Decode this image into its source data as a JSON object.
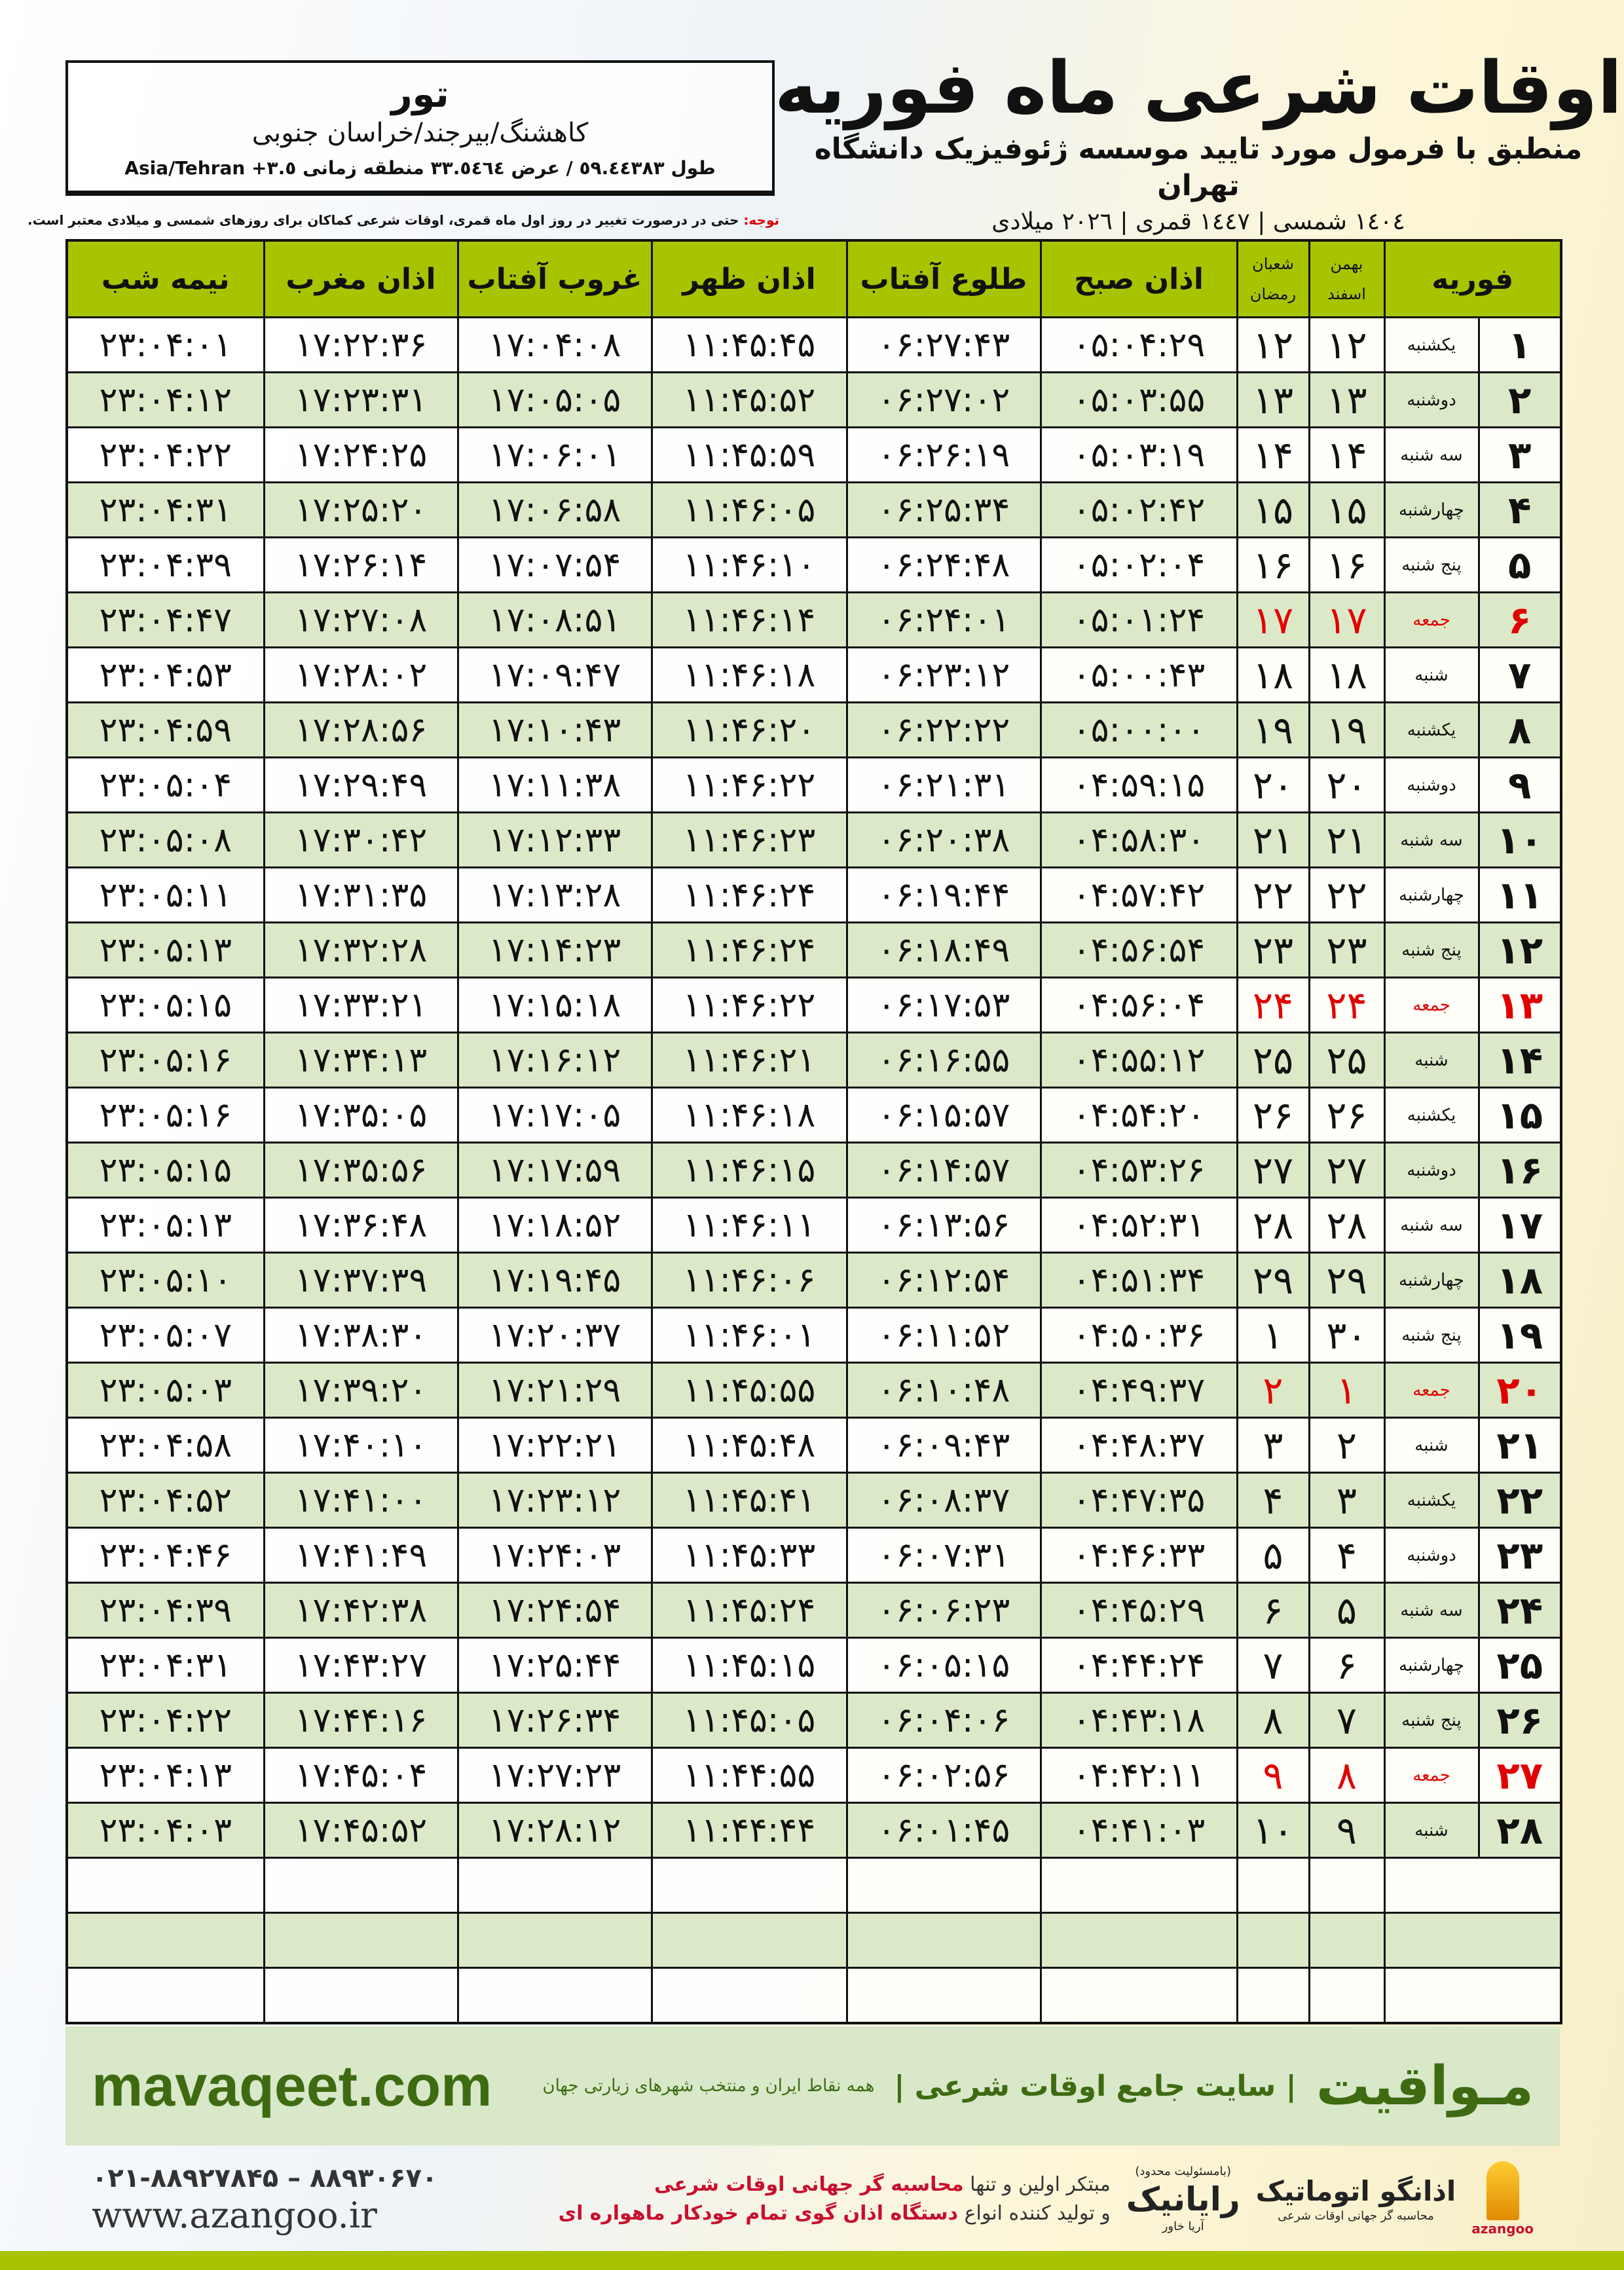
{
  "header": {
    "title": "اوقات شرعی ماه فوریه",
    "subtitle": "منطبق با فرمول مورد تایید موسسه ژئوفیزیک دانشگاه تهران",
    "years": "١٤٠٤ شمسی | ١٤٤٧ قمری | ٢٠٢٦ میلادی"
  },
  "location": {
    "city": "تور",
    "region": "کاهشنگ/بیرجند/خراسان جنوبی",
    "coords": "طول ٥٩.٤٤٣٨٣ / عرض ٣٣.٥٤٦٤ منطقه زمانی ٣.٥+ Asia/Tehran"
  },
  "note": {
    "label": "توجه:",
    "text": " حتی در درصورت تغییر در روز اول ماه قمری، اوقات شرعی کماکان برای روزهای شمسی و میلادی معتبر است."
  },
  "table": {
    "headers": {
      "month": "فوریه",
      "solar_top": "بهمن",
      "solar_bottom": "اسفند",
      "lunar_top": "شعبان",
      "lunar_bottom": "رمضان",
      "fajr": "اذان صبح",
      "sunrise": "طلوع آفتاب",
      "dhuhr": "اذان ظهر",
      "sunset": "غروب آفتاب",
      "maghrib": "اذان مغرب",
      "midnight": "نیمه شب"
    },
    "friday_color": "#e00000",
    "rows": [
      [
        "۱",
        "یکشنبه",
        "۱۲",
        "۱۲",
        "۰۵:۰۴:۲۹",
        "۰۶:۲۷:۴۳",
        "۱۱:۴۵:۴۵",
        "۱۷:۰۴:۰۸",
        "۱۷:۲۲:۳۶",
        "۲۳:۰۴:۰۱"
      ],
      [
        "۲",
        "دوشنبه",
        "۱۳",
        "۱۳",
        "۰۵:۰۳:۵۵",
        "۰۶:۲۷:۰۲",
        "۱۱:۴۵:۵۲",
        "۱۷:۰۵:۰۵",
        "۱۷:۲۳:۳۱",
        "۲۳:۰۴:۱۲"
      ],
      [
        "۳",
        "سه شنبه",
        "۱۴",
        "۱۴",
        "۰۵:۰۳:۱۹",
        "۰۶:۲۶:۱۹",
        "۱۱:۴۵:۵۹",
        "۱۷:۰۶:۰۱",
        "۱۷:۲۴:۲۵",
        "۲۳:۰۴:۲۲"
      ],
      [
        "۴",
        "چهارشنبه",
        "۱۵",
        "۱۵",
        "۰۵:۰۲:۴۲",
        "۰۶:۲۵:۳۴",
        "۱۱:۴۶:۰۵",
        "۱۷:۰۶:۵۸",
        "۱۷:۲۵:۲۰",
        "۲۳:۰۴:۳۱"
      ],
      [
        "۵",
        "پنج شنبه",
        "۱۶",
        "۱۶",
        "۰۵:۰۲:۰۴",
        "۰۶:۲۴:۴۸",
        "۱۱:۴۶:۱۰",
        "۱۷:۰۷:۵۴",
        "۱۷:۲۶:۱۴",
        "۲۳:۰۴:۳۹"
      ],
      [
        "۶",
        "جمعه",
        "۱۷",
        "۱۷",
        "۰۵:۰۱:۲۴",
        "۰۶:۲۴:۰۱",
        "۱۱:۴۶:۱۴",
        "۱۷:۰۸:۵۱",
        "۱۷:۲۷:۰۸",
        "۲۳:۰۴:۴۷"
      ],
      [
        "۷",
        "شنبه",
        "۱۸",
        "۱۸",
        "۰۵:۰۰:۴۳",
        "۰۶:۲۳:۱۲",
        "۱۱:۴۶:۱۸",
        "۱۷:۰۹:۴۷",
        "۱۷:۲۸:۰۲",
        "۲۳:۰۴:۵۳"
      ],
      [
        "۸",
        "یکشنبه",
        "۱۹",
        "۱۹",
        "۰۵:۰۰:۰۰",
        "۰۶:۲۲:۲۲",
        "۱۱:۴۶:۲۰",
        "۱۷:۱۰:۴۳",
        "۱۷:۲۸:۵۶",
        "۲۳:۰۴:۵۹"
      ],
      [
        "۹",
        "دوشنبه",
        "۲۰",
        "۲۰",
        "۰۴:۵۹:۱۵",
        "۰۶:۲۱:۳۱",
        "۱۱:۴۶:۲۲",
        "۱۷:۱۱:۳۸",
        "۱۷:۲۹:۴۹",
        "۲۳:۰۵:۰۴"
      ],
      [
        "۱۰",
        "سه شنبه",
        "۲۱",
        "۲۱",
        "۰۴:۵۸:۳۰",
        "۰۶:۲۰:۳۸",
        "۱۱:۴۶:۲۳",
        "۱۷:۱۲:۳۳",
        "۱۷:۳۰:۴۲",
        "۲۳:۰۵:۰۸"
      ],
      [
        "۱۱",
        "چهارشنبه",
        "۲۲",
        "۲۲",
        "۰۴:۵۷:۴۲",
        "۰۶:۱۹:۴۴",
        "۱۱:۴۶:۲۴",
        "۱۷:۱۳:۲۸",
        "۱۷:۳۱:۳۵",
        "۲۳:۰۵:۱۱"
      ],
      [
        "۱۲",
        "پنج شنبه",
        "۲۳",
        "۲۳",
        "۰۴:۵۶:۵۴",
        "۰۶:۱۸:۴۹",
        "۱۱:۴۶:۲۴",
        "۱۷:۱۴:۲۳",
        "۱۷:۳۲:۲۸",
        "۲۳:۰۵:۱۳"
      ],
      [
        "۱۳",
        "جمعه",
        "۲۴",
        "۲۴",
        "۰۴:۵۶:۰۴",
        "۰۶:۱۷:۵۳",
        "۱۱:۴۶:۲۲",
        "۱۷:۱۵:۱۸",
        "۱۷:۳۳:۲۱",
        "۲۳:۰۵:۱۵"
      ],
      [
        "۱۴",
        "شنبه",
        "۲۵",
        "۲۵",
        "۰۴:۵۵:۱۲",
        "۰۶:۱۶:۵۵",
        "۱۱:۴۶:۲۱",
        "۱۷:۱۶:۱۲",
        "۱۷:۳۴:۱۳",
        "۲۳:۰۵:۱۶"
      ],
      [
        "۱۵",
        "یکشنبه",
        "۲۶",
        "۲۶",
        "۰۴:۵۴:۲۰",
        "۰۶:۱۵:۵۷",
        "۱۱:۴۶:۱۸",
        "۱۷:۱۷:۰۵",
        "۱۷:۳۵:۰۵",
        "۲۳:۰۵:۱۶"
      ],
      [
        "۱۶",
        "دوشنبه",
        "۲۷",
        "۲۷",
        "۰۴:۵۳:۲۶",
        "۰۶:۱۴:۵۷",
        "۱۱:۴۶:۱۵",
        "۱۷:۱۷:۵۹",
        "۱۷:۳۵:۵۶",
        "۲۳:۰۵:۱۵"
      ],
      [
        "۱۷",
        "سه شنبه",
        "۲۸",
        "۲۸",
        "۰۴:۵۲:۳۱",
        "۰۶:۱۳:۵۶",
        "۱۱:۴۶:۱۱",
        "۱۷:۱۸:۵۲",
        "۱۷:۳۶:۴۸",
        "۲۳:۰۵:۱۳"
      ],
      [
        "۱۸",
        "چهارشنبه",
        "۲۹",
        "۲۹",
        "۰۴:۵۱:۳۴",
        "۰۶:۱۲:۵۴",
        "۱۱:۴۶:۰۶",
        "۱۷:۱۹:۴۵",
        "۱۷:۳۷:۳۹",
        "۲۳:۰۵:۱۰"
      ],
      [
        "۱۹",
        "پنج شنبه",
        "۳۰",
        "۱",
        "۰۴:۵۰:۳۶",
        "۰۶:۱۱:۵۲",
        "۱۱:۴۶:۰۱",
        "۱۷:۲۰:۳۷",
        "۱۷:۳۸:۳۰",
        "۲۳:۰۵:۰۷"
      ],
      [
        "۲۰",
        "جمعه",
        "۱",
        "۲",
        "۰۴:۴۹:۳۷",
        "۰۶:۱۰:۴۸",
        "۱۱:۴۵:۵۵",
        "۱۷:۲۱:۲۹",
        "۱۷:۳۹:۲۰",
        "۲۳:۰۵:۰۳"
      ],
      [
        "۲۱",
        "شنبه",
        "۲",
        "۳",
        "۰۴:۴۸:۳۷",
        "۰۶:۰۹:۴۳",
        "۱۱:۴۵:۴۸",
        "۱۷:۲۲:۲۱",
        "۱۷:۴۰:۱۰",
        "۲۳:۰۴:۵۸"
      ],
      [
        "۲۲",
        "یکشنبه",
        "۳",
        "۴",
        "۰۴:۴۷:۳۵",
        "۰۶:۰۸:۳۷",
        "۱۱:۴۵:۴۱",
        "۱۷:۲۳:۱۲",
        "۱۷:۴۱:۰۰",
        "۲۳:۰۴:۵۲"
      ],
      [
        "۲۳",
        "دوشنبه",
        "۴",
        "۵",
        "۰۴:۴۶:۳۳",
        "۰۶:۰۷:۳۱",
        "۱۱:۴۵:۳۳",
        "۱۷:۲۴:۰۳",
        "۱۷:۴۱:۴۹",
        "۲۳:۰۴:۴۶"
      ],
      [
        "۲۴",
        "سه شنبه",
        "۵",
        "۶",
        "۰۴:۴۵:۲۹",
        "۰۶:۰۶:۲۳",
        "۱۱:۴۵:۲۴",
        "۱۷:۲۴:۵۴",
        "۱۷:۴۲:۳۸",
        "۲۳:۰۴:۳۹"
      ],
      [
        "۲۵",
        "چهارشنبه",
        "۶",
        "۷",
        "۰۴:۴۴:۲۴",
        "۰۶:۰۵:۱۵",
        "۱۱:۴۵:۱۵",
        "۱۷:۲۵:۴۴",
        "۱۷:۴۳:۲۷",
        "۲۳:۰۴:۳۱"
      ],
      [
        "۲۶",
        "پنج شنبه",
        "۷",
        "۸",
        "۰۴:۴۳:۱۸",
        "۰۶:۰۴:۰۶",
        "۱۱:۴۵:۰۵",
        "۱۷:۲۶:۳۴",
        "۱۷:۴۴:۱۶",
        "۲۳:۰۴:۲۲"
      ],
      [
        "۲۷",
        "جمعه",
        "۸",
        "۹",
        "۰۴:۴۲:۱۱",
        "۰۶:۰۲:۵۶",
        "۱۱:۴۴:۵۵",
        "۱۷:۲۷:۲۳",
        "۱۷:۴۵:۰۴",
        "۲۳:۰۴:۱۳"
      ],
      [
        "۲۸",
        "شنبه",
        "۹",
        "۱۰",
        "۰۴:۴۱:۰۳",
        "۰۶:۰۱:۴۵",
        "۱۱:۴۴:۴۴",
        "۱۷:۲۸:۱۲",
        "۱۷:۴۵:۵۲",
        "۲۳:۰۴:۰۳"
      ]
    ],
    "friday_label": "جمعه"
  },
  "footer": {
    "brand": "مـواقیت",
    "tagline": "| سایت جامع اوقات شرعی |",
    "tagsub": "همه نقاط ایران و منتخب شهرهای زیارتی جهان",
    "site": "mavaqeet.com",
    "phones": "۰۲۱-۸۸۹۲۷۸۴۵ – ۸۸۹۳۰۶۷۰",
    "www": "www.azangoo.ir",
    "promo1_a": "مبتکر اولین و تنها ",
    "promo1_b": "محاسبه گر جهانی اوقات شرعی",
    "promo2_a": "و تولید کننده انواع ",
    "promo2_b": "دستگاه اذان گوی تمام خودکار ماهواره ای",
    "rayanik_sub": "(بامسئولیت محدود)",
    "rayanik": "رایانیک",
    "rayanik_side": "آریا خاور",
    "azangoo": "اذانگو اتوماتیک",
    "azangoo_tag": "محاسبه گر جهانی اوقات شرعی",
    "azangoo_en": "azangoo",
    "accent": "#a8c400",
    "brand_color": "#3e6b12"
  }
}
